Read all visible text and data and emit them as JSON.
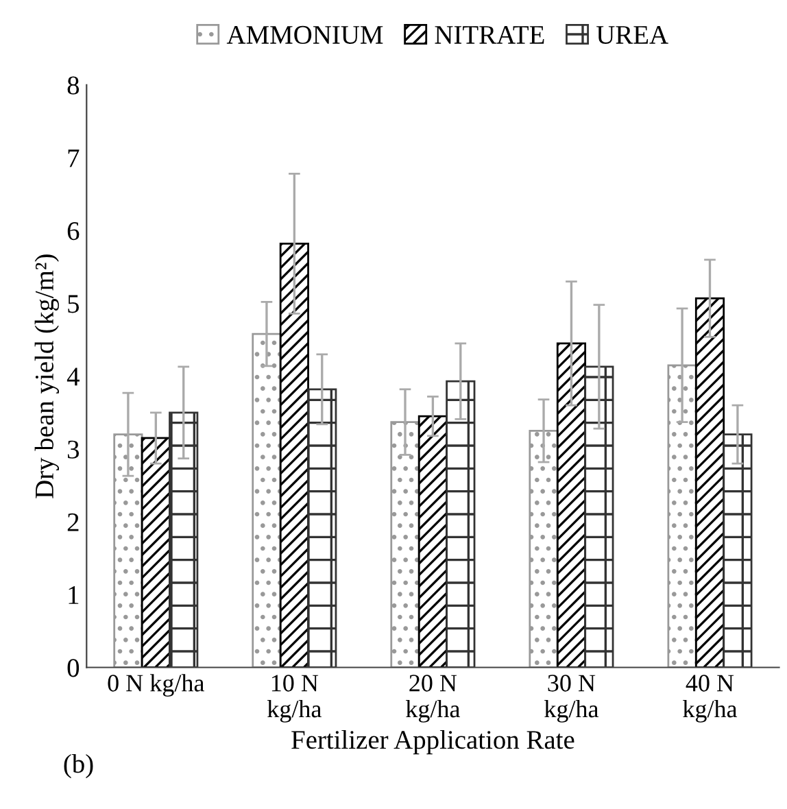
{
  "chart_data": {
    "type": "bar",
    "xlabel": "Fertilizer Application Rate",
    "ylabel": "Dry bean yield (kg/m²)",
    "categories": [
      "0 N kg/ha",
      "10 N\nkg/ha",
      "20 N\nkg/ha",
      "30 N\nkg/ha",
      "40 N\nkg/ha"
    ],
    "series": [
      {
        "name": "AMMONIUM",
        "color": "#999999",
        "values": [
          3.2,
          4.58,
          3.37,
          3.25,
          4.15
        ],
        "errors": [
          0.57,
          0.44,
          0.45,
          0.43,
          0.78
        ]
      },
      {
        "name": "NITRATE",
        "color": "#000000",
        "values": [
          3.15,
          5.82,
          3.45,
          4.45,
          5.07
        ],
        "errors": [
          0.35,
          0.96,
          0.27,
          0.85,
          0.53
        ]
      },
      {
        "name": "UREA",
        "color": "#333333",
        "values": [
          3.5,
          3.82,
          3.93,
          4.13,
          3.2
        ],
        "errors": [
          0.63,
          0.48,
          0.52,
          0.85,
          0.4
        ]
      }
    ],
    "ylim": [
      0,
      8
    ],
    "yticks": [
      0,
      1,
      2,
      3,
      4,
      5,
      6,
      7,
      8
    ],
    "grid": false,
    "legend": "top",
    "annotations": [
      "(b)"
    ]
  }
}
